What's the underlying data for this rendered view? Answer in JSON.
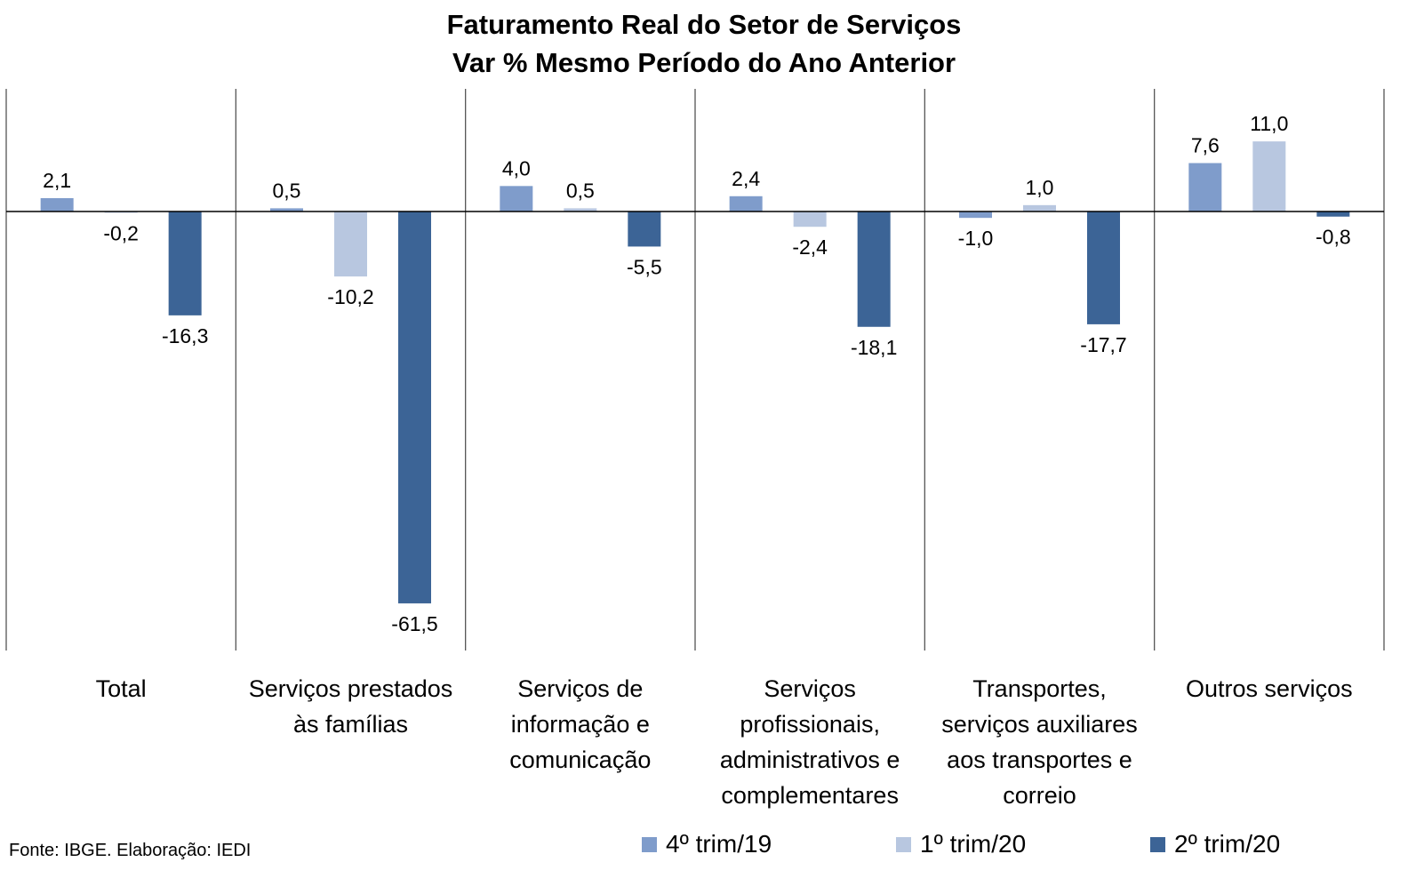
{
  "chart_data": {
    "type": "bar",
    "title": "Faturamento Real do Setor de Serviços",
    "subtitle": "Var % Mesmo Período do Ano Anterior",
    "categories": [
      "Total",
      "Serviços prestados às famílias",
      "Serviços de informação e comunicação",
      "Serviços profissionais, administrativos e complementares",
      "Transportes, serviços auxiliares aos transportes e correio",
      "Outros serviços"
    ],
    "series": [
      {
        "name": "4º trim/19",
        "color": "#7f9ccb",
        "values": [
          2.1,
          0.5,
          4.0,
          2.4,
          -1.0,
          7.6
        ],
        "labels": [
          "2,1",
          "0,5",
          "4,0",
          "2,4",
          "-1,0",
          "7,6"
        ]
      },
      {
        "name": "1º trim/20",
        "color": "#b8c7e0",
        "values": [
          -0.2,
          -10.2,
          0.5,
          -2.4,
          1.0,
          11.0
        ],
        "labels": [
          "-0,2",
          "-10,2",
          "0,5",
          "-2,4",
          "1,0",
          "11,0"
        ]
      },
      {
        "name": "2º trim/20",
        "color": "#3c6496",
        "values": [
          -16.3,
          -61.5,
          -5.5,
          -18.1,
          -17.7,
          -0.8
        ],
        "labels": [
          "-16,3",
          "-61,5",
          "-5,5",
          "-18,1",
          "-17,7",
          "-0,8"
        ]
      }
    ],
    "ylim": [
      -69,
      19
    ],
    "legend": "bottom"
  },
  "source": "Fonte: IBGE. Elaboração: IEDI"
}
